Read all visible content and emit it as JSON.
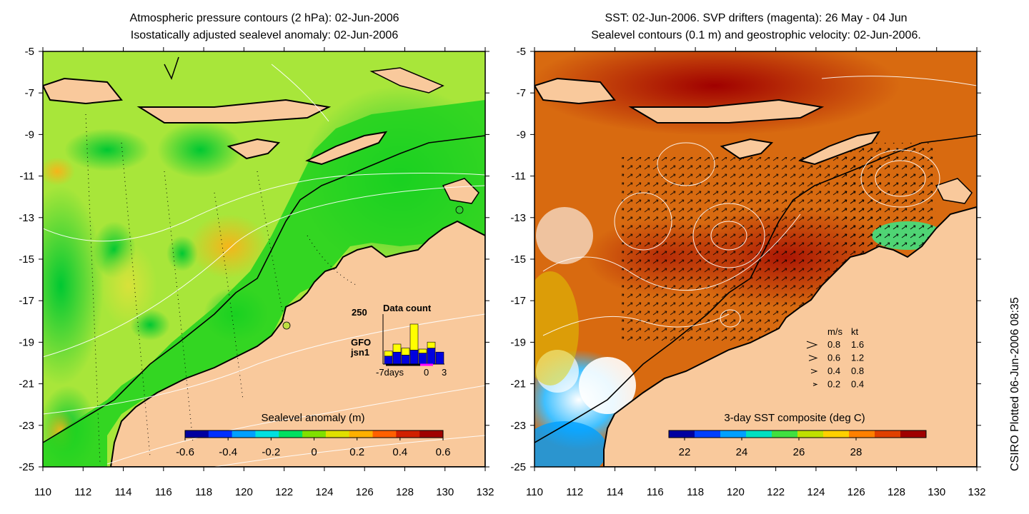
{
  "left_panel": {
    "title_line1": "Atmospheric pressure contours (2 hPa): 02-Jun-2006",
    "title_line2": "Isostatically adjusted sealevel anomaly: 02-Jun-2006",
    "colorbar_title": "Sealevel anomaly (m)",
    "colorbar_ticks": [
      "-0.6",
      "-0.4",
      "-0.2",
      "0",
      "0.2",
      "0.4",
      "0.6"
    ],
    "colorbar_colors": [
      "#0000a0",
      "#0030ff",
      "#00a0ff",
      "#00e0e0",
      "#00e060",
      "#80e000",
      "#e0e000",
      "#ffb000",
      "#ff6000",
      "#d02000",
      "#a00000"
    ],
    "inset": {
      "title": "Data count",
      "ymax_label": "250",
      "legend": [
        {
          "label": "GFO",
          "color": "#ffff00"
        },
        {
          "label": "jsn1",
          "color": "#0000ff"
        }
      ],
      "xlabel_left": "-7days",
      "xlabel_mid": "0",
      "xlabel_right": "3",
      "bars": [
        {
          "blue": 40,
          "yellow": 25
        },
        {
          "blue": 60,
          "yellow": 40
        },
        {
          "blue": 45,
          "yellow": 35
        },
        {
          "blue": 70,
          "yellow": 130
        },
        {
          "blue": 55,
          "yellow": 20
        },
        {
          "blue": 80,
          "yellow": 30
        },
        {
          "blue": 60,
          "yellow": 0
        }
      ]
    }
  },
  "right_panel": {
    "title_line1": "SST: 02-Jun-2006. SVP drifters (magenta): 26 May - 04 Jun",
    "title_line2": "Sealevel contours (0.1 m) and geostrophic velocity: 02-Jun-2006.",
    "colorbar_title": "3-day SST composite (deg C)",
    "colorbar_ticks": [
      "22",
      "24",
      "26",
      "28"
    ],
    "colorbar_colors": [
      "#0000a0",
      "#0040ff",
      "#00a0ff",
      "#00e0c0",
      "#40e040",
      "#c0e000",
      "#ffd000",
      "#ff8000",
      "#e04000",
      "#a00000"
    ],
    "velocity_legend": {
      "header_ms": "m/s",
      "header_kt": "kt",
      "rows": [
        {
          "ms": "0.8",
          "kt": "1.6"
        },
        {
          "ms": "0.6",
          "kt": "1.2"
        },
        {
          "ms": "0.4",
          "kt": "0.8"
        },
        {
          "ms": "0.2",
          "kt": "0.4"
        }
      ]
    }
  },
  "axes": {
    "y_ticks": [
      "-5",
      "-7",
      "-9",
      "-11",
      "-13",
      "-15",
      "-17",
      "-19",
      "-21",
      "-23",
      "-25"
    ],
    "x_ticks": [
      "110",
      "112",
      "114",
      "116",
      "118",
      "120",
      "122",
      "124",
      "126",
      "128",
      "130",
      "132"
    ]
  },
  "credit": "CSIRO Plotted 06-Jun-2006 08:35",
  "colors": {
    "land": "#f9c99c",
    "sla_base": "#a8e63a",
    "sst_base": "#d86a10"
  }
}
